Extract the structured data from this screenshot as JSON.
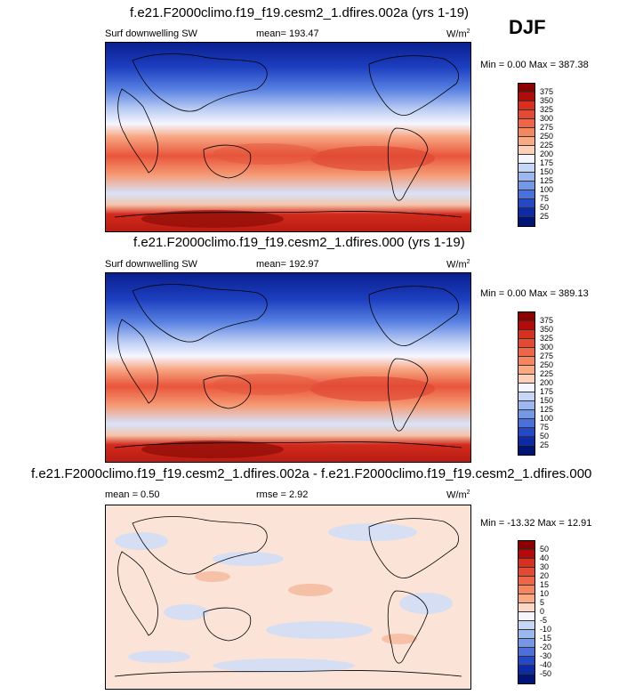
{
  "season": "DJF",
  "panels": [
    {
      "id": "top",
      "title": "f.e21.F2000climo.f19_f19.cesm2_1.dfires.002a (yrs 1-19)",
      "left_label": "Surf downwelling SW",
      "mean_label": "mean= 193.47",
      "units_label": "W/m",
      "units_sup": "2",
      "minmax": "Min =   0.00 Max = 387.38"
    },
    {
      "id": "middle",
      "title": "f.e21.F2000climo.f19_f19.cesm2_1.dfires.000 (yrs 1-19)",
      "left_label": "Surf downwelling SW",
      "mean_label": "mean= 192.97",
      "units_label": "W/m",
      "units_sup": "2",
      "minmax": "Min =   0.00 Max = 389.13"
    },
    {
      "id": "diff",
      "title": "f.e21.F2000climo.f19_f19.cesm2_1.dfires.002a - f.e21.F2000climo.f19_f19.cesm2_1.dfires.000",
      "left_label": "mean =   0.50",
      "mean_label": "rmse =   2.92",
      "units_label": "W/m",
      "units_sup": "2",
      "minmax": "Min = -13.32 Max =  12.91"
    }
  ],
  "chart_data": [
    {
      "type": "heatmap",
      "title": "f.e21.F2000climo.f19_f19.cesm2_1.dfires.002a (yrs 1-19)",
      "variable": "Surf downwelling SW",
      "mean": 193.47,
      "min": 0.0,
      "max": 387.38,
      "units": "W/m2",
      "colorbar_levels": [
        375,
        350,
        325,
        300,
        275,
        250,
        225,
        200,
        175,
        150,
        125,
        100,
        75,
        50,
        25
      ],
      "colorbar_colors": [
        "#8b0000",
        "#b30a0a",
        "#d7301f",
        "#e34a33",
        "#ef6548",
        "#f4875f",
        "#f9aa83",
        "#fcd0b8",
        "#f5f5ff",
        "#c6d6f7",
        "#9cb8ef",
        "#7497e6",
        "#4b6fdb",
        "#2648c7",
        "#0d2aa8",
        "#001475"
      ]
    },
    {
      "type": "heatmap",
      "title": "f.e21.F2000climo.f19_f19.cesm2_1.dfires.000 (yrs 1-19)",
      "variable": "Surf downwelling SW",
      "mean": 192.97,
      "min": 0.0,
      "max": 389.13,
      "units": "W/m2",
      "colorbar_levels": [
        375,
        350,
        325,
        300,
        275,
        250,
        225,
        200,
        175,
        150,
        125,
        100,
        75,
        50,
        25
      ],
      "colorbar_colors": [
        "#8b0000",
        "#b30a0a",
        "#d7301f",
        "#e34a33",
        "#ef6548",
        "#f4875f",
        "#f9aa83",
        "#fcd0b8",
        "#f5f5ff",
        "#c6d6f7",
        "#9cb8ef",
        "#7497e6",
        "#4b6fdb",
        "#2648c7",
        "#0d2aa8",
        "#001475"
      ]
    },
    {
      "type": "heatmap",
      "title": "f.e21.F2000climo.f19_f19.cesm2_1.dfires.002a - f.e21.F2000climo.f19_f19.cesm2_1.dfires.000",
      "mean": 0.5,
      "rmse": 2.92,
      "min": -13.32,
      "max": 12.91,
      "units": "W/m2",
      "colorbar_levels": [
        50,
        40,
        30,
        20,
        15,
        10,
        5,
        0,
        -5,
        -10,
        -15,
        -20,
        -30,
        -40,
        -50
      ],
      "colorbar_colors": [
        "#8b0000",
        "#b30a0a",
        "#d7301f",
        "#e34a33",
        "#ef6548",
        "#f4875f",
        "#f9aa83",
        "#fcd8c4",
        "#f5f5ff",
        "#c6d6f7",
        "#9cb8ef",
        "#7497e6",
        "#4b6fdb",
        "#2648c7",
        "#0d2aa8",
        "#001475"
      ]
    }
  ]
}
